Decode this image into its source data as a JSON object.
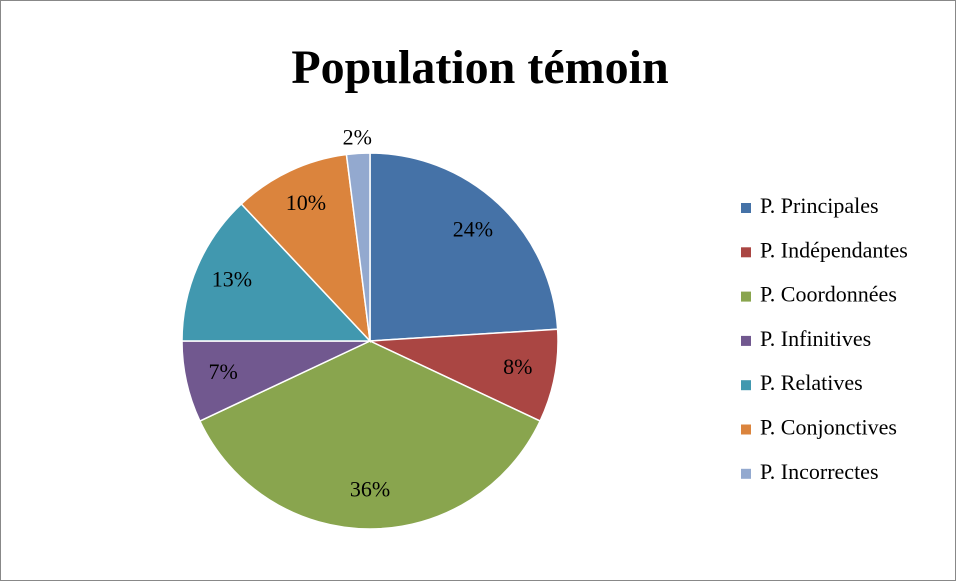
{
  "chart_data": {
    "type": "pie",
    "title": "Population témoin",
    "categories": [
      "P. Principales",
      "P. Indépendantes",
      "P. Coordonnées",
      "P. Infinitives",
      "P. Relatives",
      "P. Conjonctives",
      "P. Incorrectes"
    ],
    "values": [
      24,
      8,
      36,
      7,
      13,
      10,
      2
    ],
    "value_labels": [
      "24%",
      "8%",
      "36%",
      "7%",
      "13%",
      "10%",
      "2%"
    ],
    "colors": [
      "#4572a7",
      "#aa4643",
      "#89a54e",
      "#71588f",
      "#4198af",
      "#db843d",
      "#93a9cf"
    ],
    "legend": "right"
  }
}
